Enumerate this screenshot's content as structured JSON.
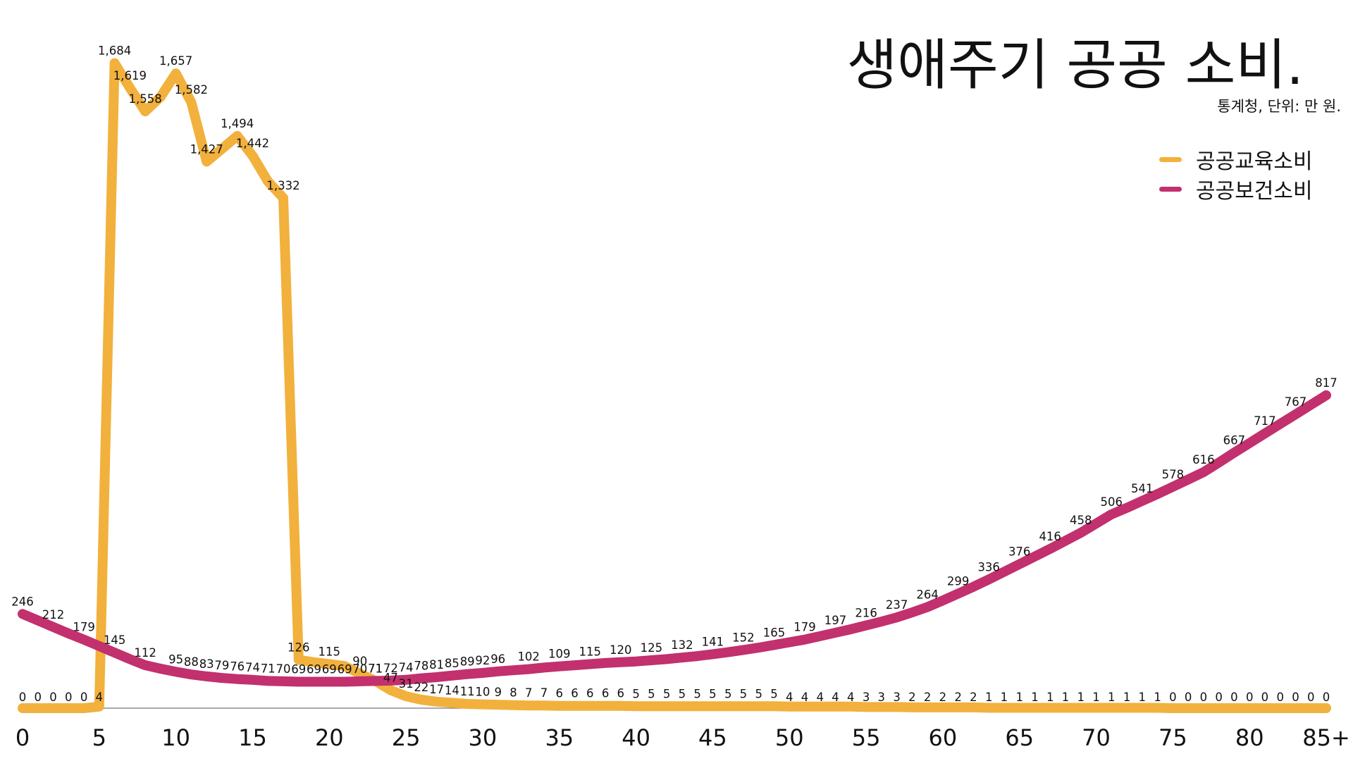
{
  "chart_data": {
    "type": "line",
    "title": "생애주기 공공 소비.",
    "subtitle": "통계청, 단위: 만 원.",
    "x": [
      0,
      1,
      2,
      3,
      4,
      5,
      6,
      7,
      8,
      9,
      10,
      11,
      12,
      13,
      14,
      15,
      16,
      17,
      18,
      19,
      20,
      21,
      22,
      23,
      24,
      25,
      26,
      27,
      28,
      29,
      30,
      31,
      32,
      33,
      34,
      35,
      36,
      37,
      38,
      39,
      40,
      41,
      42,
      43,
      44,
      45,
      46,
      47,
      48,
      49,
      50,
      51,
      52,
      53,
      54,
      55,
      56,
      57,
      58,
      59,
      60,
      61,
      62,
      63,
      64,
      65,
      66,
      67,
      68,
      69,
      70,
      71,
      72,
      73,
      74,
      75,
      76,
      77,
      78,
      79,
      80,
      81,
      82,
      83,
      84,
      85
    ],
    "xticks": [
      0,
      5,
      10,
      15,
      20,
      25,
      30,
      35,
      40,
      45,
      50,
      55,
      60,
      65,
      70,
      75,
      80,
      85
    ],
    "xtick_labels": [
      "0",
      "5",
      "10",
      "15",
      "20",
      "25",
      "30",
      "35",
      "40",
      "45",
      "50",
      "55",
      "60",
      "65",
      "70",
      "75",
      "80",
      "85+"
    ],
    "xlim": [
      0,
      85
    ],
    "ylim": [
      0,
      1720
    ],
    "grid": false,
    "legend_position": "top-right",
    "series": [
      {
        "name": "공공교육소비",
        "color": "#F2B13C",
        "values": [
          0,
          0,
          0,
          0,
          0,
          4,
          1684,
          1619,
          1558,
          1596,
          1657,
          1582,
          1427,
          1460,
          1494,
          1442,
          1375,
          1332,
          126,
          120,
          115,
          110,
          90,
          71,
          47,
          31,
          22,
          17,
          14,
          11,
          10,
          9,
          8,
          7,
          7,
          6,
          6,
          6,
          6,
          6,
          5,
          5,
          5,
          5,
          5,
          5,
          5,
          5,
          5,
          5,
          4,
          4,
          4,
          4,
          4,
          3,
          3,
          3,
          2,
          2,
          2,
          2,
          2,
          1,
          1,
          1,
          1,
          1,
          1,
          1,
          1,
          1,
          1,
          1,
          1,
          0,
          0,
          0,
          0,
          0,
          0,
          0,
          0,
          0,
          0,
          0
        ],
        "labels": [
          "0",
          "0",
          "0",
          "0",
          "0",
          "4",
          "1,684",
          "1,619",
          "1,558",
          "",
          "1,657",
          "1,582",
          "1,427",
          "",
          "1,494",
          "1,442",
          "",
          "1,332",
          "126",
          "",
          "115",
          "",
          "90",
          "71",
          "47",
          "31",
          "22",
          "17",
          "14",
          "11",
          "10",
          "9",
          "8",
          "7",
          "7",
          "6",
          "6",
          "6",
          "6",
          "6",
          "5",
          "5",
          "5",
          "5",
          "5",
          "5",
          "5",
          "5",
          "5",
          "5",
          "4",
          "4",
          "4",
          "4",
          "4",
          "3",
          "3",
          "3",
          "2",
          "2",
          "2",
          "2",
          "2",
          "1",
          "1",
          "1",
          "1",
          "1",
          "1",
          "1",
          "1",
          "1",
          "1",
          "1",
          "1",
          "0",
          "0",
          "0",
          "0",
          "0",
          "0",
          "0",
          "0",
          "0",
          "0",
          "0"
        ]
      },
      {
        "name": "공공보건소비",
        "color": "#C2306E",
        "values": [
          246,
          229,
          212,
          195,
          179,
          162,
          145,
          128,
          112,
          103,
          95,
          88,
          83,
          79,
          76,
          74,
          71,
          70,
          69,
          69,
          69,
          69,
          70,
          71,
          72,
          74,
          78,
          81,
          85,
          89,
          92,
          96,
          99,
          102,
          106,
          109,
          112,
          115,
          118,
          120,
          122,
          125,
          128,
          132,
          136,
          141,
          146,
          152,
          158,
          165,
          172,
          179,
          188,
          197,
          206,
          216,
          226,
          237,
          250,
          264,
          281,
          299,
          317,
          336,
          356,
          376,
          396,
          416,
          437,
          458,
          482,
          506,
          523,
          541,
          559,
          578,
          597,
          616,
          641,
          667,
          692,
          717,
          742,
          767,
          792,
          817
        ],
        "labels": [
          "246",
          "",
          "212",
          "",
          "179",
          "",
          "145",
          "",
          "112",
          "",
          "95",
          "88",
          "83",
          "79",
          "76",
          "74",
          "71",
          "70",
          "69",
          "69",
          "69",
          "69",
          "70",
          "71",
          "72",
          "74",
          "78",
          "81",
          "85",
          "89",
          "92",
          "96",
          "",
          "102",
          "",
          "109",
          "",
          "115",
          "",
          "120",
          "",
          "125",
          "",
          "132",
          "",
          "141",
          "",
          "152",
          "",
          "165",
          "",
          "179",
          "",
          "197",
          "",
          "216",
          "",
          "237",
          "",
          "264",
          "",
          "299",
          "",
          "336",
          "",
          "376",
          "",
          "416",
          "",
          "458",
          "",
          "506",
          "",
          "541",
          "",
          "578",
          "",
          "616",
          "",
          "667",
          "",
          "717",
          "",
          "767",
          "",
          "817"
        ]
      }
    ]
  }
}
